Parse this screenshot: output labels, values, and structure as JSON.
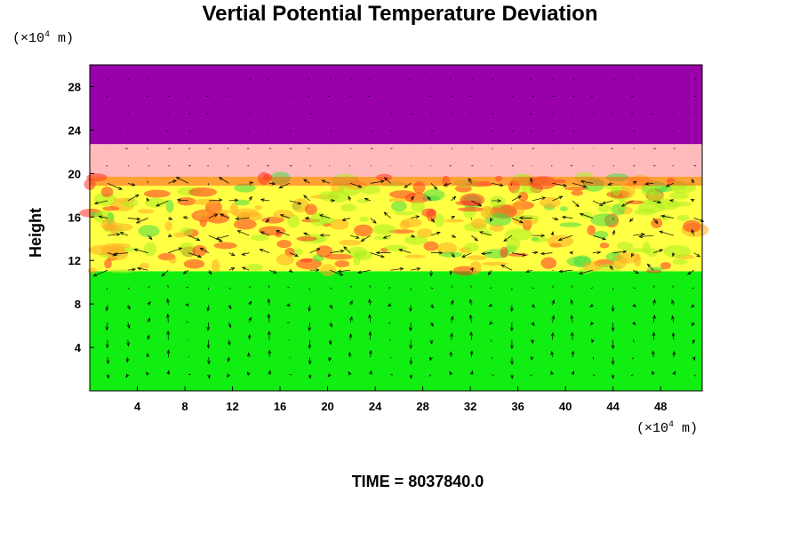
{
  "chart_data": {
    "type": "heatmap",
    "title": "Vertial Potential Temperature Deviation",
    "ylabel": "Height",
    "xlabel": "",
    "x_unit": "(×10",
    "x_unit_exp": "4",
    "x_unit_tail": " m)",
    "y_unit": "(×10",
    "y_unit_exp": "4",
    "y_unit_tail": " m)",
    "xlim": [
      0,
      51.5
    ],
    "ylim": [
      0,
      30
    ],
    "xticks": [
      4,
      8,
      12,
      16,
      20,
      24,
      28,
      32,
      36,
      40,
      44,
      48
    ],
    "yticks": [
      4,
      8,
      12,
      16,
      20,
      24,
      28
    ],
    "bands": [
      {
        "y0": 22.7,
        "y1": 30,
        "color": "#9900aa"
      },
      {
        "y0": 19.7,
        "y1": 22.7,
        "color": "#ffbbbb"
      },
      {
        "y0": 11.0,
        "y1": 19.7,
        "color": "#ffff44"
      },
      {
        "y0": 0,
        "y1": 11.0,
        "color": "#11ee11"
      }
    ],
    "time_label": "TIME = ",
    "time_value": "8037840.0"
  }
}
